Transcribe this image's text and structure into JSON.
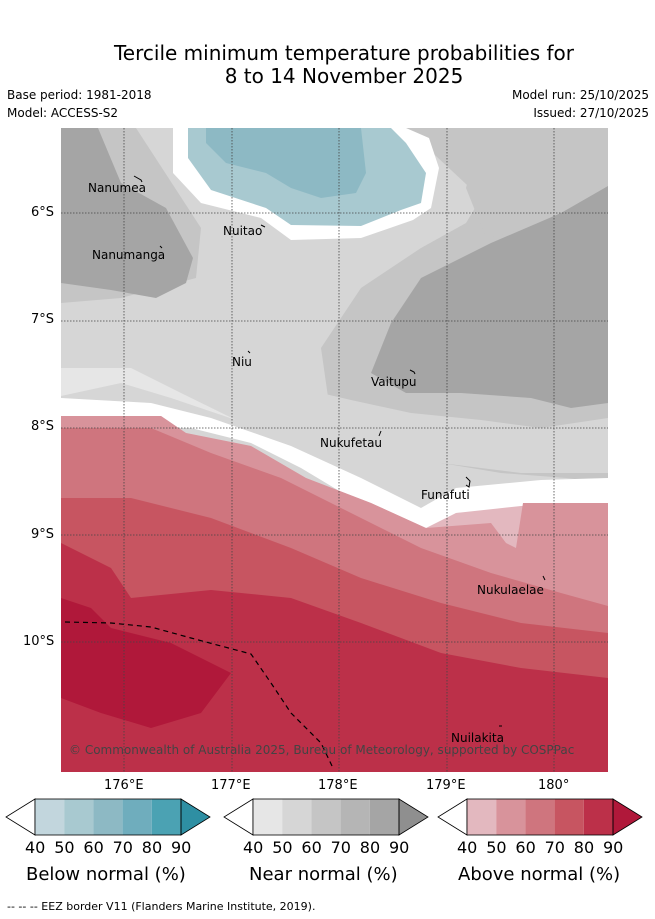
{
  "title_line1": "Tercile minimum temperature probabilities for",
  "title_line2": "8 to 14 November 2025",
  "base_period": "Base period: 1981-2018",
  "model": "Model: ACCESS-S2",
  "model_run": "Model run: 25/10/2025",
  "issued": "Issued: 27/10/2025",
  "copyright": "© Commonwealth of Australia 2025, Bureau of Meteorology, supported by COSPPac",
  "footnote": "-- -- -- EEZ border V11 (Flanders Marine Institute, 2019).",
  "places": [
    "Nanumea",
    "Nanumanga",
    "Nuitao",
    "Niu",
    "Vaitupu",
    "Nukufetau",
    "Funafuti",
    "Nukulaelae",
    "Nuilakita"
  ],
  "lat_ticks": [
    "6°S",
    "7°S",
    "8°S",
    "9°S",
    "10°S"
  ],
  "lon_ticks": [
    "176°E",
    "177°E",
    "178°E",
    "179°E",
    "180°"
  ],
  "colorbars": [
    {
      "title": "Below normal (%)",
      "labels": [
        "40",
        "50",
        "60",
        "70",
        "80",
        "90"
      ],
      "colors": [
        "#c2d6dd",
        "#a8c9d0",
        "#8db9c4",
        "#6fadbd",
        "#4ba2b3",
        "#2e8fa3"
      ]
    },
    {
      "title": "Near normal (%)",
      "labels": [
        "40",
        "50",
        "60",
        "70",
        "80",
        "90"
      ],
      "colors": [
        "#e6e6e6",
        "#d6d6d6",
        "#c5c5c5",
        "#b5b5b5",
        "#a5a5a5",
        "#8f8f8f"
      ]
    },
    {
      "title": "Above normal (%)",
      "labels": [
        "40",
        "50",
        "60",
        "70",
        "80",
        "90"
      ],
      "colors": [
        "#e3b8bf",
        "#d8939b",
        "#cf757e",
        "#c75561",
        "#bc3049",
        "#b0183a"
      ]
    }
  ]
}
